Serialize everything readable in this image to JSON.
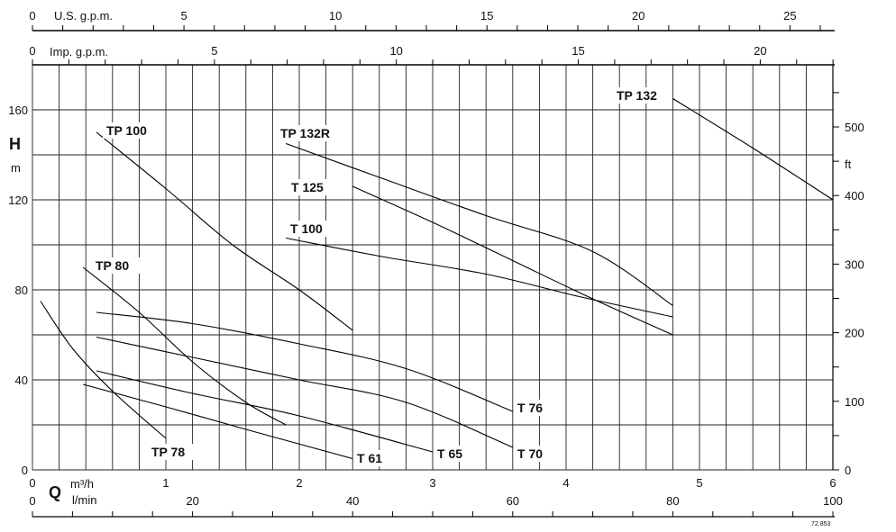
{
  "chart_data": {
    "type": "line",
    "xlabel_flow_m3h": "m³/h",
    "xlabel_flow_lmin": "l/min",
    "q_symbol": "Q",
    "ylabel_h": "H",
    "ylabel_h_unit": "m",
    "ylabel_ft": "ft",
    "top_axis_us_label": "U.S. g.p.m.",
    "top_axis_imp_label": "Imp. g.p.m.",
    "figure_code": "72.853",
    "xlim_m3h": [
      0,
      6
    ],
    "ylim_m": [
      0,
      180
    ],
    "grid": true,
    "ticks": {
      "m3h": [
        0,
        1,
        2,
        3,
        4,
        5,
        6
      ],
      "lmin": [
        0,
        20,
        40,
        60,
        80,
        100
      ],
      "us_gpm": [
        0,
        5,
        10,
        15,
        20,
        25
      ],
      "imp_gpm": [
        0,
        5,
        10,
        15,
        20
      ],
      "h_m": [
        0,
        40,
        80,
        120,
        160
      ],
      "h_ft": [
        0,
        100,
        200,
        300,
        400,
        500
      ]
    },
    "series": [
      {
        "name": "TP 78",
        "points": [
          [
            0.06,
            75
          ],
          [
            0.3,
            54
          ],
          [
            0.6,
            35
          ],
          [
            1.0,
            14
          ]
        ]
      },
      {
        "name": "TP 80",
        "points": [
          [
            0.38,
            90
          ],
          [
            0.8,
            70
          ],
          [
            1.2,
            48
          ],
          [
            1.6,
            30
          ],
          [
            1.9,
            20
          ]
        ]
      },
      {
        "name": "TP 100",
        "points": [
          [
            0.48,
            150
          ],
          [
            1.0,
            125
          ],
          [
            1.5,
            100
          ],
          [
            2.0,
            80
          ],
          [
            2.4,
            62
          ]
        ]
      },
      {
        "name": "T 61",
        "points": [
          [
            0.38,
            38
          ],
          [
            1.0,
            28
          ],
          [
            1.6,
            18
          ],
          [
            2.4,
            5
          ]
        ]
      },
      {
        "name": "T 65",
        "points": [
          [
            0.48,
            44
          ],
          [
            1.2,
            34
          ],
          [
            2.0,
            24
          ],
          [
            3.0,
            8
          ]
        ]
      },
      {
        "name": "T 70",
        "points": [
          [
            0.48,
            59
          ],
          [
            1.2,
            50
          ],
          [
            2.0,
            40
          ],
          [
            2.8,
            30
          ],
          [
            3.6,
            10
          ]
        ]
      },
      {
        "name": "T 76",
        "points": [
          [
            0.48,
            70
          ],
          [
            1.2,
            65
          ],
          [
            2.0,
            56
          ],
          [
            2.8,
            45
          ],
          [
            3.6,
            26
          ]
        ]
      },
      {
        "name": "T 100",
        "points": [
          [
            1.9,
            103
          ],
          [
            2.6,
            95
          ],
          [
            3.4,
            87
          ],
          [
            4.1,
            77
          ],
          [
            4.8,
            68
          ]
        ]
      },
      {
        "name": "T 125",
        "points": [
          [
            2.4,
            126
          ],
          [
            3.0,
            110
          ],
          [
            3.6,
            93
          ],
          [
            4.2,
            76
          ],
          [
            4.8,
            60
          ]
        ]
      },
      {
        "name": "TP 132R",
        "points": [
          [
            1.9,
            145
          ],
          [
            2.6,
            130
          ],
          [
            3.4,
            113
          ],
          [
            4.2,
            97
          ],
          [
            4.8,
            73
          ]
        ]
      },
      {
        "name": "TP 132",
        "points": [
          [
            4.8,
            165
          ],
          [
            5.4,
            143
          ],
          [
            6.0,
            120
          ]
        ]
      }
    ]
  }
}
